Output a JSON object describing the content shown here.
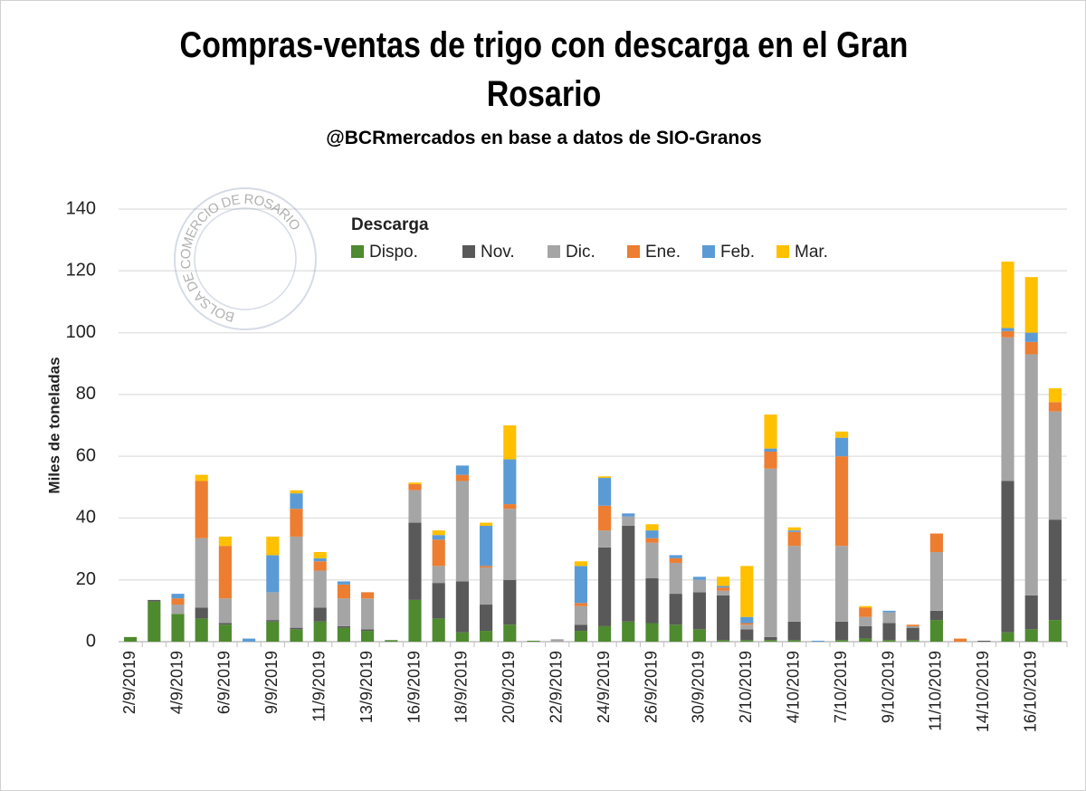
{
  "chart_data": {
    "type": "stacked_bar",
    "title": "Compras-ventas de trigo con descarga en el Gran Rosario",
    "subtitle": "@BCRmercados en base a datos de SIO-Granos",
    "watermark": "BOLSA DE COMERCIO DE ROSARIO",
    "y_label": "Miles de toneladas",
    "legend_title": "Descarga",
    "categories": [
      "2/9/2019",
      null,
      "4/9/2019",
      null,
      "6/9/2019",
      null,
      "9/9/2019",
      null,
      "11/9/2019",
      null,
      "13/9/2019",
      null,
      "16/9/2019",
      null,
      "18/9/2019",
      null,
      "20/9/2019",
      null,
      "22/9/2019",
      null,
      "24/9/2019",
      null,
      "26/9/2019",
      null,
      "30/9/2019",
      null,
      "2/10/2019",
      null,
      "4/10/2019",
      null,
      "7/10/2019",
      null,
      "9/10/2019",
      null,
      "11/10/2019",
      null,
      "14/10/2019",
      null,
      "16/10/2019",
      null
    ],
    "series": [
      {
        "name": "Dispo.",
        "color": "#4e8a2e",
        "values": [
          1.5,
          13,
          9,
          7.5,
          5.5,
          0,
          6.5,
          4,
          6.5,
          4.5,
          3.5,
          0.5,
          13.5,
          7.5,
          3,
          3.5,
          5.5,
          0.3,
          0,
          3.5,
          5,
          6.5,
          6,
          5.5,
          4,
          0.5,
          0.5,
          0.5,
          0.5,
          0,
          0.5,
          1,
          0.5,
          0.5,
          7,
          0,
          0,
          3,
          4,
          7
        ]
      },
      {
        "name": "Nov.",
        "color": "#595959",
        "values": [
          0,
          0.5,
          0,
          3.5,
          0.5,
          0,
          0.5,
          0.5,
          4.5,
          0.5,
          0.5,
          0,
          25,
          11.5,
          16.5,
          8.5,
          14.5,
          0,
          0,
          2,
          25.5,
          31,
          14.5,
          10,
          12,
          14.5,
          3.5,
          1,
          6,
          0,
          6,
          4,
          5.5,
          4,
          3,
          0,
          0.3,
          49,
          11,
          32.5
        ]
      },
      {
        "name": "Dic.",
        "color": "#a5a5a5",
        "values": [
          0,
          0,
          3,
          22.5,
          8,
          0,
          9,
          29.5,
          12,
          9,
          10,
          0,
          10.5,
          5.5,
          32.5,
          12,
          23,
          0,
          0.8,
          6,
          5.5,
          3,
          11.5,
          10,
          4,
          1.5,
          1.5,
          54.5,
          24.5,
          0,
          24.5,
          3,
          3.5,
          0.5,
          19,
          0,
          0,
          46.5,
          78,
          35
        ]
      },
      {
        "name": "Ene.",
        "color": "#ed7d31",
        "values": [
          0,
          0,
          2,
          18.5,
          17,
          0,
          0,
          9,
          3,
          4.5,
          2,
          0,
          2,
          8.5,
          2,
          0.5,
          1.5,
          0,
          0,
          1,
          8,
          0,
          1.5,
          1.5,
          0,
          1,
          0.5,
          5.5,
          4.5,
          0,
          29,
          3,
          0,
          0.5,
          6,
          1,
          0,
          2,
          4,
          3
        ]
      },
      {
        "name": "Feb.",
        "color": "#5b9bd5",
        "values": [
          0,
          0,
          1.5,
          0,
          0,
          1,
          12,
          5,
          1,
          1,
          0,
          0,
          0,
          1.5,
          3,
          13,
          14.5,
          0,
          0,
          12,
          9,
          1,
          2.5,
          1,
          1,
          0.5,
          2,
          1,
          0.5,
          0.3,
          6,
          0,
          0.5,
          0,
          0,
          0,
          0,
          1,
          3,
          0
        ]
      },
      {
        "name": "Mar.",
        "color": "#ffc000",
        "values": [
          0,
          0,
          0,
          2,
          3,
          0,
          6,
          1,
          2,
          0,
          0,
          0,
          0.5,
          1.5,
          0,
          1,
          11,
          0,
          0,
          1.5,
          0.5,
          0,
          2,
          0,
          0,
          3,
          16.5,
          11,
          1,
          0,
          2,
          0.5,
          0,
          0,
          0,
          0,
          0,
          21.5,
          18,
          4.5
        ]
      }
    ],
    "ylim": [
      0,
      140
    ],
    "yticks": [
      0,
      20,
      40,
      60,
      80,
      100,
      120,
      140
    ],
    "grid": true
  }
}
